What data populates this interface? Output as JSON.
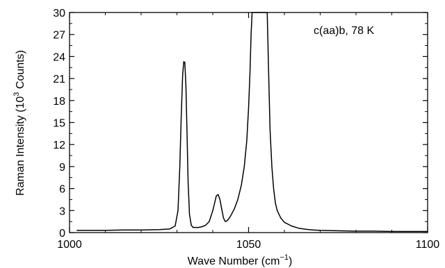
{
  "chart_data": {
    "type": "line",
    "xlabel": "Wave Number (cm",
    "xlabel_sup": "−1",
    "xlabel_end": ")",
    "ylabel": "Raman Intensity (10",
    "ylabel_sup": "3",
    "ylabel_end": " Counts)",
    "annotation": "c(aa)b, 78 K",
    "xlim": [
      1000,
      1100
    ],
    "ylim": [
      0,
      30
    ],
    "xticks": [
      1000,
      1050,
      1100
    ],
    "yticks": [
      0,
      3,
      6,
      9,
      12,
      15,
      18,
      21,
      24,
      27,
      30
    ],
    "xtick_labels": [
      "1000",
      "1050",
      "1100"
    ],
    "ytick_labels": [
      "0",
      "3",
      "6",
      "9",
      "12",
      "15",
      "18",
      "21",
      "24",
      "27",
      "30"
    ],
    "grid": false,
    "line_color": "#000000",
    "series": [
      {
        "x": [
          1002,
          1005,
          1010,
          1015,
          1020,
          1025,
          1028,
          1029.5,
          1030.3,
          1030.8,
          1031.2,
          1031.6,
          1031.9,
          1032.2,
          1032.5,
          1032.8,
          1033.1,
          1033.5,
          1034,
          1034.5,
          1035,
          1036,
          1037,
          1038,
          1039,
          1040,
          1040.5,
          1041,
          1041.5,
          1042,
          1042.5,
          1043,
          1043.5,
          1044,
          1044.5,
          1045,
          1046,
          1047,
          1048,
          1048.8,
          1049.5,
          1050,
          1050.4,
          1050.7,
          1051,
          1055.2,
          1055.6,
          1056,
          1056.5,
          1057,
          1057.5,
          1058,
          1059,
          1060,
          1062,
          1064,
          1066,
          1068,
          1070,
          1075,
          1080,
          1085,
          1090,
          1095,
          1100
        ],
        "y": [
          0.3,
          0.3,
          0.3,
          0.35,
          0.35,
          0.4,
          0.5,
          0.9,
          3,
          9,
          16,
          21.5,
          23.3,
          23.2,
          20,
          14,
          7,
          2.5,
          1.0,
          0.7,
          0.7,
          0.7,
          0.8,
          1.0,
          1.5,
          3.0,
          4.0,
          5.0,
          5.2,
          4.5,
          3.2,
          2.0,
          1.5,
          1.6,
          1.9,
          2.3,
          3.2,
          4.5,
          6.5,
          9,
          12.5,
          17,
          22,
          27,
          30,
          30,
          22,
          14,
          9,
          6,
          4,
          3,
          2,
          1.4,
          0.9,
          0.6,
          0.45,
          0.35,
          0.3,
          0.25,
          0.2,
          0.2,
          0.15,
          0.15,
          0.15
        ]
      }
    ]
  }
}
